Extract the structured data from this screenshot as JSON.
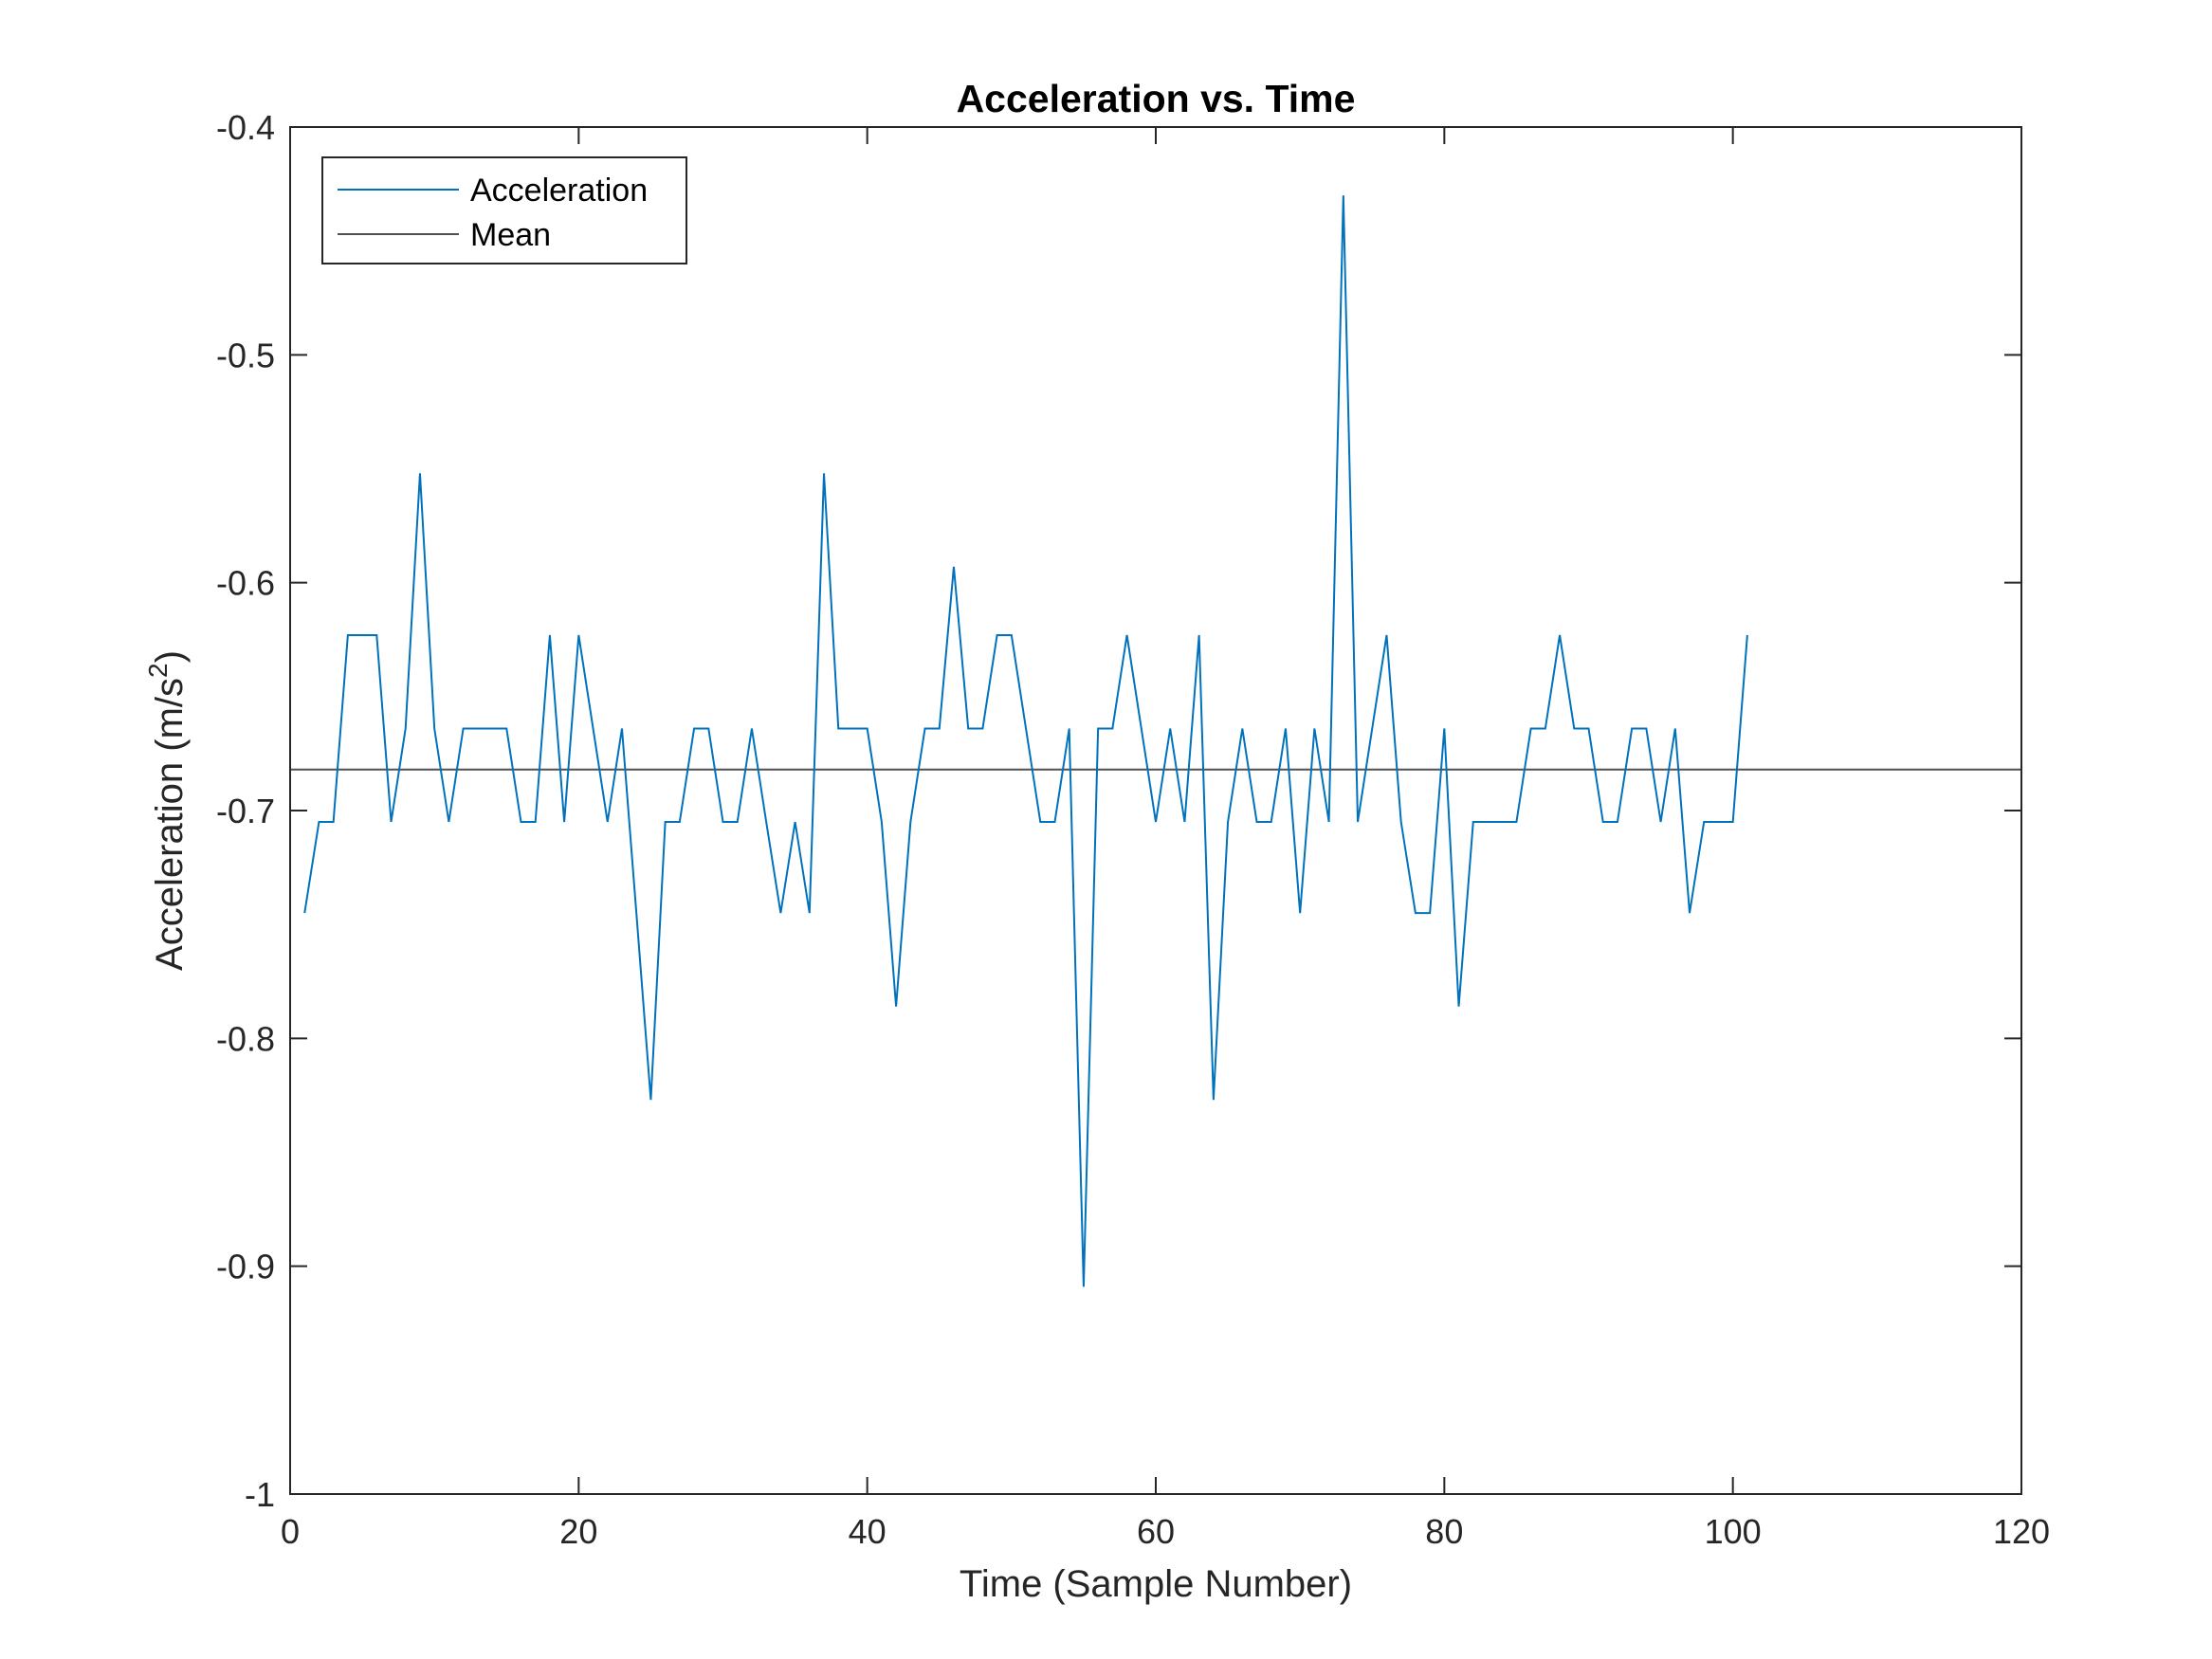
{
  "chart_data": {
    "type": "line",
    "title": "Acceleration vs. Time",
    "xlabel": "Time (Sample Number)",
    "ylabel": {
      "prefix": "Acceleration (m/s",
      "superscript": "2",
      "suffix": ")"
    },
    "xlim": [
      0,
      120
    ],
    "ylim": [
      -1,
      -0.4
    ],
    "xticks": [
      0,
      20,
      40,
      60,
      80,
      100,
      120
    ],
    "xtick_labels": [
      "0",
      "20",
      "40",
      "60",
      "80",
      "100",
      "120"
    ],
    "yticks": [
      -1,
      -0.9,
      -0.8,
      -0.7,
      -0.6,
      -0.5,
      -0.4
    ],
    "ytick_labels": [
      "-1",
      "-0.9",
      "-0.8",
      "-0.7",
      "-0.6",
      "-0.5",
      "-0.4"
    ],
    "grid": false,
    "legend_position": "top-left",
    "series": [
      {
        "name": "Acceleration",
        "color": "#0072BD",
        "x_start": 1,
        "values": [
          -0.745,
          -0.705,
          -0.705,
          -0.623,
          -0.623,
          -0.623,
          -0.705,
          -0.664,
          -0.552,
          -0.664,
          -0.705,
          -0.664,
          -0.664,
          -0.664,
          -0.664,
          -0.705,
          -0.705,
          -0.623,
          -0.705,
          -0.623,
          -0.664,
          -0.705,
          -0.664,
          -0.745,
          -0.827,
          -0.705,
          -0.705,
          -0.664,
          -0.664,
          -0.705,
          -0.705,
          -0.664,
          -0.705,
          -0.745,
          -0.705,
          -0.745,
          -0.552,
          -0.664,
          -0.664,
          -0.664,
          -0.705,
          -0.786,
          -0.705,
          -0.664,
          -0.664,
          -0.593,
          -0.664,
          -0.664,
          -0.623,
          -0.623,
          -0.664,
          -0.705,
          -0.705,
          -0.664,
          -0.909,
          -0.664,
          -0.664,
          -0.623,
          -0.664,
          -0.705,
          -0.664,
          -0.705,
          -0.623,
          -0.827,
          -0.705,
          -0.664,
          -0.705,
          -0.705,
          -0.664,
          -0.745,
          -0.664,
          -0.705,
          -0.43,
          -0.705,
          -0.664,
          -0.623,
          -0.705,
          -0.745,
          -0.745,
          -0.664,
          -0.786,
          -0.705,
          -0.705,
          -0.705,
          -0.705,
          -0.664,
          -0.664,
          -0.623,
          -0.664,
          -0.664,
          -0.705,
          -0.705,
          -0.664,
          -0.664,
          -0.705,
          -0.664,
          -0.745,
          -0.705,
          -0.705,
          -0.705,
          -0.623
        ]
      },
      {
        "name": "Mean",
        "color": "#505050",
        "constant": -0.682
      }
    ]
  }
}
